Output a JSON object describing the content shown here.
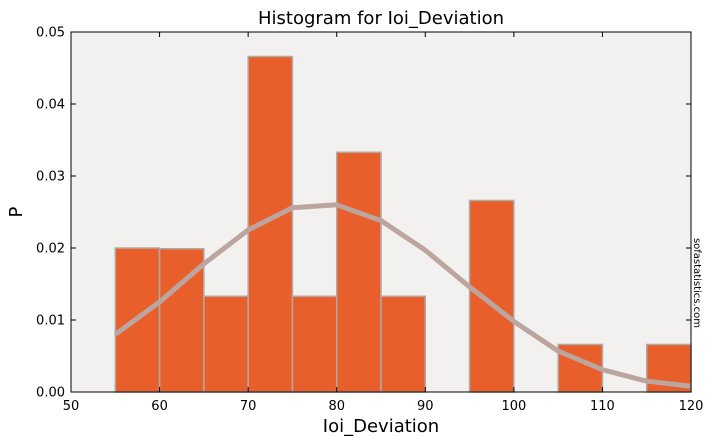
{
  "chart_data": {
    "type": "bar",
    "title": "Histogram for Ioi_Deviation",
    "xlabel": "Ioi_Deviation",
    "ylabel": "P",
    "xlim": [
      50,
      120
    ],
    "ylim": [
      0,
      0.05
    ],
    "xticks": [
      50,
      60,
      70,
      80,
      90,
      100,
      110,
      120
    ],
    "yticks": [
      0.0,
      0.01,
      0.02,
      0.03,
      0.04,
      0.05
    ],
    "xtick_labels": [
      "50",
      "60",
      "70",
      "80",
      "90",
      "100",
      "110",
      "120"
    ],
    "ytick_labels": [
      "0.00",
      "0.01",
      "0.02",
      "0.03",
      "0.04",
      "0.05"
    ],
    "grid": false,
    "bins": [
      {
        "start": 55,
        "end": 60,
        "value": 0.02
      },
      {
        "start": 60,
        "end": 65,
        "value": 0.0199
      },
      {
        "start": 65,
        "end": 70,
        "value": 0.0133
      },
      {
        "start": 70,
        "end": 75,
        "value": 0.0466
      },
      {
        "start": 75,
        "end": 80,
        "value": 0.0133
      },
      {
        "start": 80,
        "end": 85,
        "value": 0.0333
      },
      {
        "start": 85,
        "end": 90,
        "value": 0.0133
      },
      {
        "start": 90,
        "end": 95,
        "value": 0.0
      },
      {
        "start": 95,
        "end": 100,
        "value": 0.0266
      },
      {
        "start": 100,
        "end": 105,
        "value": 0.0
      },
      {
        "start": 105,
        "end": 110,
        "value": 0.0066
      },
      {
        "start": 110,
        "end": 115,
        "value": 0.0
      },
      {
        "start": 115,
        "end": 120,
        "value": 0.0066
      }
    ],
    "curve": {
      "x": [
        55,
        60,
        65,
        70,
        75,
        80,
        85,
        90,
        95,
        100,
        105,
        110,
        115,
        120
      ],
      "y": [
        0.008,
        0.0125,
        0.0178,
        0.0225,
        0.0256,
        0.026,
        0.0238,
        0.0197,
        0.0146,
        0.0098,
        0.0057,
        0.0031,
        0.0015,
        0.0008
      ]
    },
    "watermark": "sofastatistics.com",
    "colors": {
      "bar_fill": "#e95f2b",
      "bar_edge": "#b0aaa5",
      "plot_bg": "#f2f1f0",
      "curve": "#bba59e",
      "axis": "#000000"
    }
  }
}
